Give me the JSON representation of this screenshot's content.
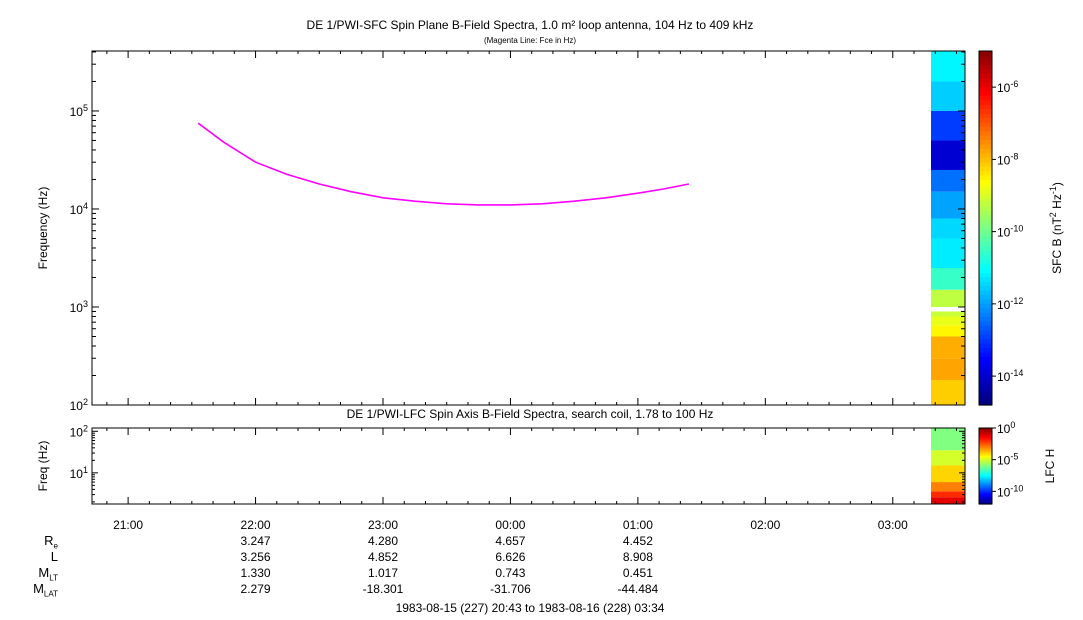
{
  "colors": {
    "fce_line": "#ff00ff",
    "frame": "#000000",
    "background": "#ffffff"
  },
  "titles": {
    "top": "DE 1/PWI-SFC  Spin Plane B-Field Spectra, 1.0 m² loop antenna, 104 Hz to 409 kHz",
    "top_note": "(Magenta Line: Fce in Hz)",
    "bottom": "DE 1/PWI-LFC  Spin Axis B-Field Spectra, search coil, 1.78 to 100 Hz"
  },
  "time_range": "1983-08-15 (227) 20:43 to 1983-08-16 (228) 03:34",
  "ephemeris": {
    "labels": [
      {
        "main": "R",
        "sub": "e"
      },
      {
        "main": "L",
        "sub": ""
      },
      {
        "main": "M",
        "sub": "LT"
      },
      {
        "main": "M",
        "sub": "LAT"
      }
    ],
    "columns": [
      {
        "time": "22:00",
        "values": [
          "3.247",
          "3.256",
          "1.330",
          "2.279"
        ]
      },
      {
        "time": "23:00",
        "values": [
          "4.280",
          "4.852",
          "1.017",
          "-18.301"
        ]
      },
      {
        "time": "00:00",
        "values": [
          "4.657",
          "6.626",
          "0.743",
          "-31.706"
        ]
      },
      {
        "time": "01:00",
        "values": [
          "4.452",
          "8.908",
          "0.451",
          "-44.484"
        ]
      }
    ]
  },
  "chart_data": [
    {
      "type": "heatmap",
      "title": "DE 1/PWI-SFC  Spin Plane B-Field Spectra, 1.0 m² loop antenna, 104 Hz to 409 kHz",
      "subtitle": "(Magenta Line: Fce in Hz)",
      "ylabel": "Frequency (Hz)",
      "yscale": "log",
      "ylim": [
        100,
        409000
      ],
      "y_ticks": [
        {
          "v": 100,
          "label": "10",
          "exp": "2"
        },
        {
          "v": 1000,
          "label": "10",
          "exp": "3"
        },
        {
          "v": 10000,
          "label": "10",
          "exp": "4"
        },
        {
          "v": 100000,
          "label": "10",
          "exp": "5"
        }
      ],
      "x_ticks": [
        "21:00",
        "22:00",
        "23:00",
        "00:00",
        "01:00",
        "02:00",
        "03:00"
      ],
      "colorbar": {
        "label": "SFC B (nT",
        "label_exp": "2",
        "label_mid": " Hz",
        "label_exp2": "-1",
        "label_end": ")",
        "scale": "log",
        "range_exp": [
          -14.8,
          -5
        ],
        "ticks": [
          {
            "exp": -6,
            "label": "10",
            "sup": "-6"
          },
          {
            "exp": -8,
            "label": "10",
            "sup": "-8"
          },
          {
            "exp": -10,
            "label": "10",
            "sup": "-10"
          },
          {
            "exp": -12,
            "label": "10",
            "sup": "-12"
          },
          {
            "exp": -14,
            "label": "10",
            "sup": "-14"
          }
        ]
      },
      "data_window": {
        "start_hour": 27.3,
        "end_hour": 27.57
      },
      "series": [
        {
          "name": "Fce",
          "x_hours": [
            21.55,
            21.75,
            22.0,
            22.25,
            22.5,
            22.75,
            23.0,
            23.25,
            23.5,
            23.75,
            24.0,
            24.25,
            24.5,
            24.75,
            25.0,
            25.2,
            25.4
          ],
          "y_hz": [
            75000,
            48000,
            30000,
            22500,
            18000,
            15000,
            13000,
            12000,
            11300,
            11000,
            11000,
            11300,
            12000,
            13000,
            14500,
            16000,
            18000
          ]
        }
      ],
      "spectrogram_rows": [
        {
          "f_lo": 100,
          "f_hi": 180,
          "level": -8.2
        },
        {
          "f_lo": 180,
          "f_hi": 300,
          "level": -7.8
        },
        {
          "f_lo": 300,
          "f_hi": 500,
          "level": -7.9
        },
        {
          "f_lo": 500,
          "f_hi": 650,
          "level": -8.6
        },
        {
          "f_lo": 650,
          "f_hi": 800,
          "level": -8.9
        },
        {
          "f_lo": 800,
          "f_hi": 900,
          "level": -9.2
        },
        {
          "f_lo": 1000,
          "f_hi": 1500,
          "level": -9.3
        },
        {
          "f_lo": 1500,
          "f_hi": 2500,
          "level": -10.6
        },
        {
          "f_lo": 2500,
          "f_hi": 5000,
          "level": -11.3
        },
        {
          "f_lo": 5000,
          "f_hi": 8000,
          "level": -11.5
        },
        {
          "f_lo": 8000,
          "f_hi": 15000,
          "level": -12.0
        },
        {
          "f_lo": 15000,
          "f_hi": 25000,
          "level": -12.5
        },
        {
          "f_lo": 25000,
          "f_hi": 50000,
          "level": -14.0
        },
        {
          "f_lo": 50000,
          "f_hi": 100000,
          "level": -13.0
        },
        {
          "f_lo": 100000,
          "f_hi": 200000,
          "level": -11.6
        },
        {
          "f_lo": 200000,
          "f_hi": 409000,
          "level": -11.2
        }
      ]
    },
    {
      "type": "heatmap",
      "title": "DE 1/PWI-LFC  Spin Axis B-Field Spectra, search coil, 1.78 to 100 Hz",
      "ylabel": "Freq (Hz)",
      "yscale": "log",
      "ylim": [
        1.78,
        120
      ],
      "y_ticks": [
        {
          "v": 10,
          "label": "10",
          "exp": "1"
        },
        {
          "v": 100,
          "label": "10",
          "exp": "2"
        }
      ],
      "colorbar": {
        "label": "LFC H",
        "scale": "log",
        "range_exp": [
          -12,
          0
        ],
        "ticks": [
          {
            "exp": 0,
            "label": "10",
            "sup": "0"
          },
          {
            "exp": -5,
            "label": "10",
            "sup": "-5"
          },
          {
            "exp": -10,
            "label": "10",
            "sup": "-10"
          }
        ]
      },
      "spectrogram_rows": [
        {
          "f_lo": 1.78,
          "f_hi": 2.6,
          "level": -1.2
        },
        {
          "f_lo": 2.6,
          "f_hi": 3.6,
          "level": -2.0
        },
        {
          "f_lo": 3.6,
          "f_hi": 6.0,
          "level": -3.0
        },
        {
          "f_lo": 6.0,
          "f_hi": 15.0,
          "level": -4.0
        },
        {
          "f_lo": 15.0,
          "f_hi": 35.0,
          "level": -5.0
        },
        {
          "f_lo": 35.0,
          "f_hi": 120,
          "level": -6.0
        }
      ]
    }
  ]
}
